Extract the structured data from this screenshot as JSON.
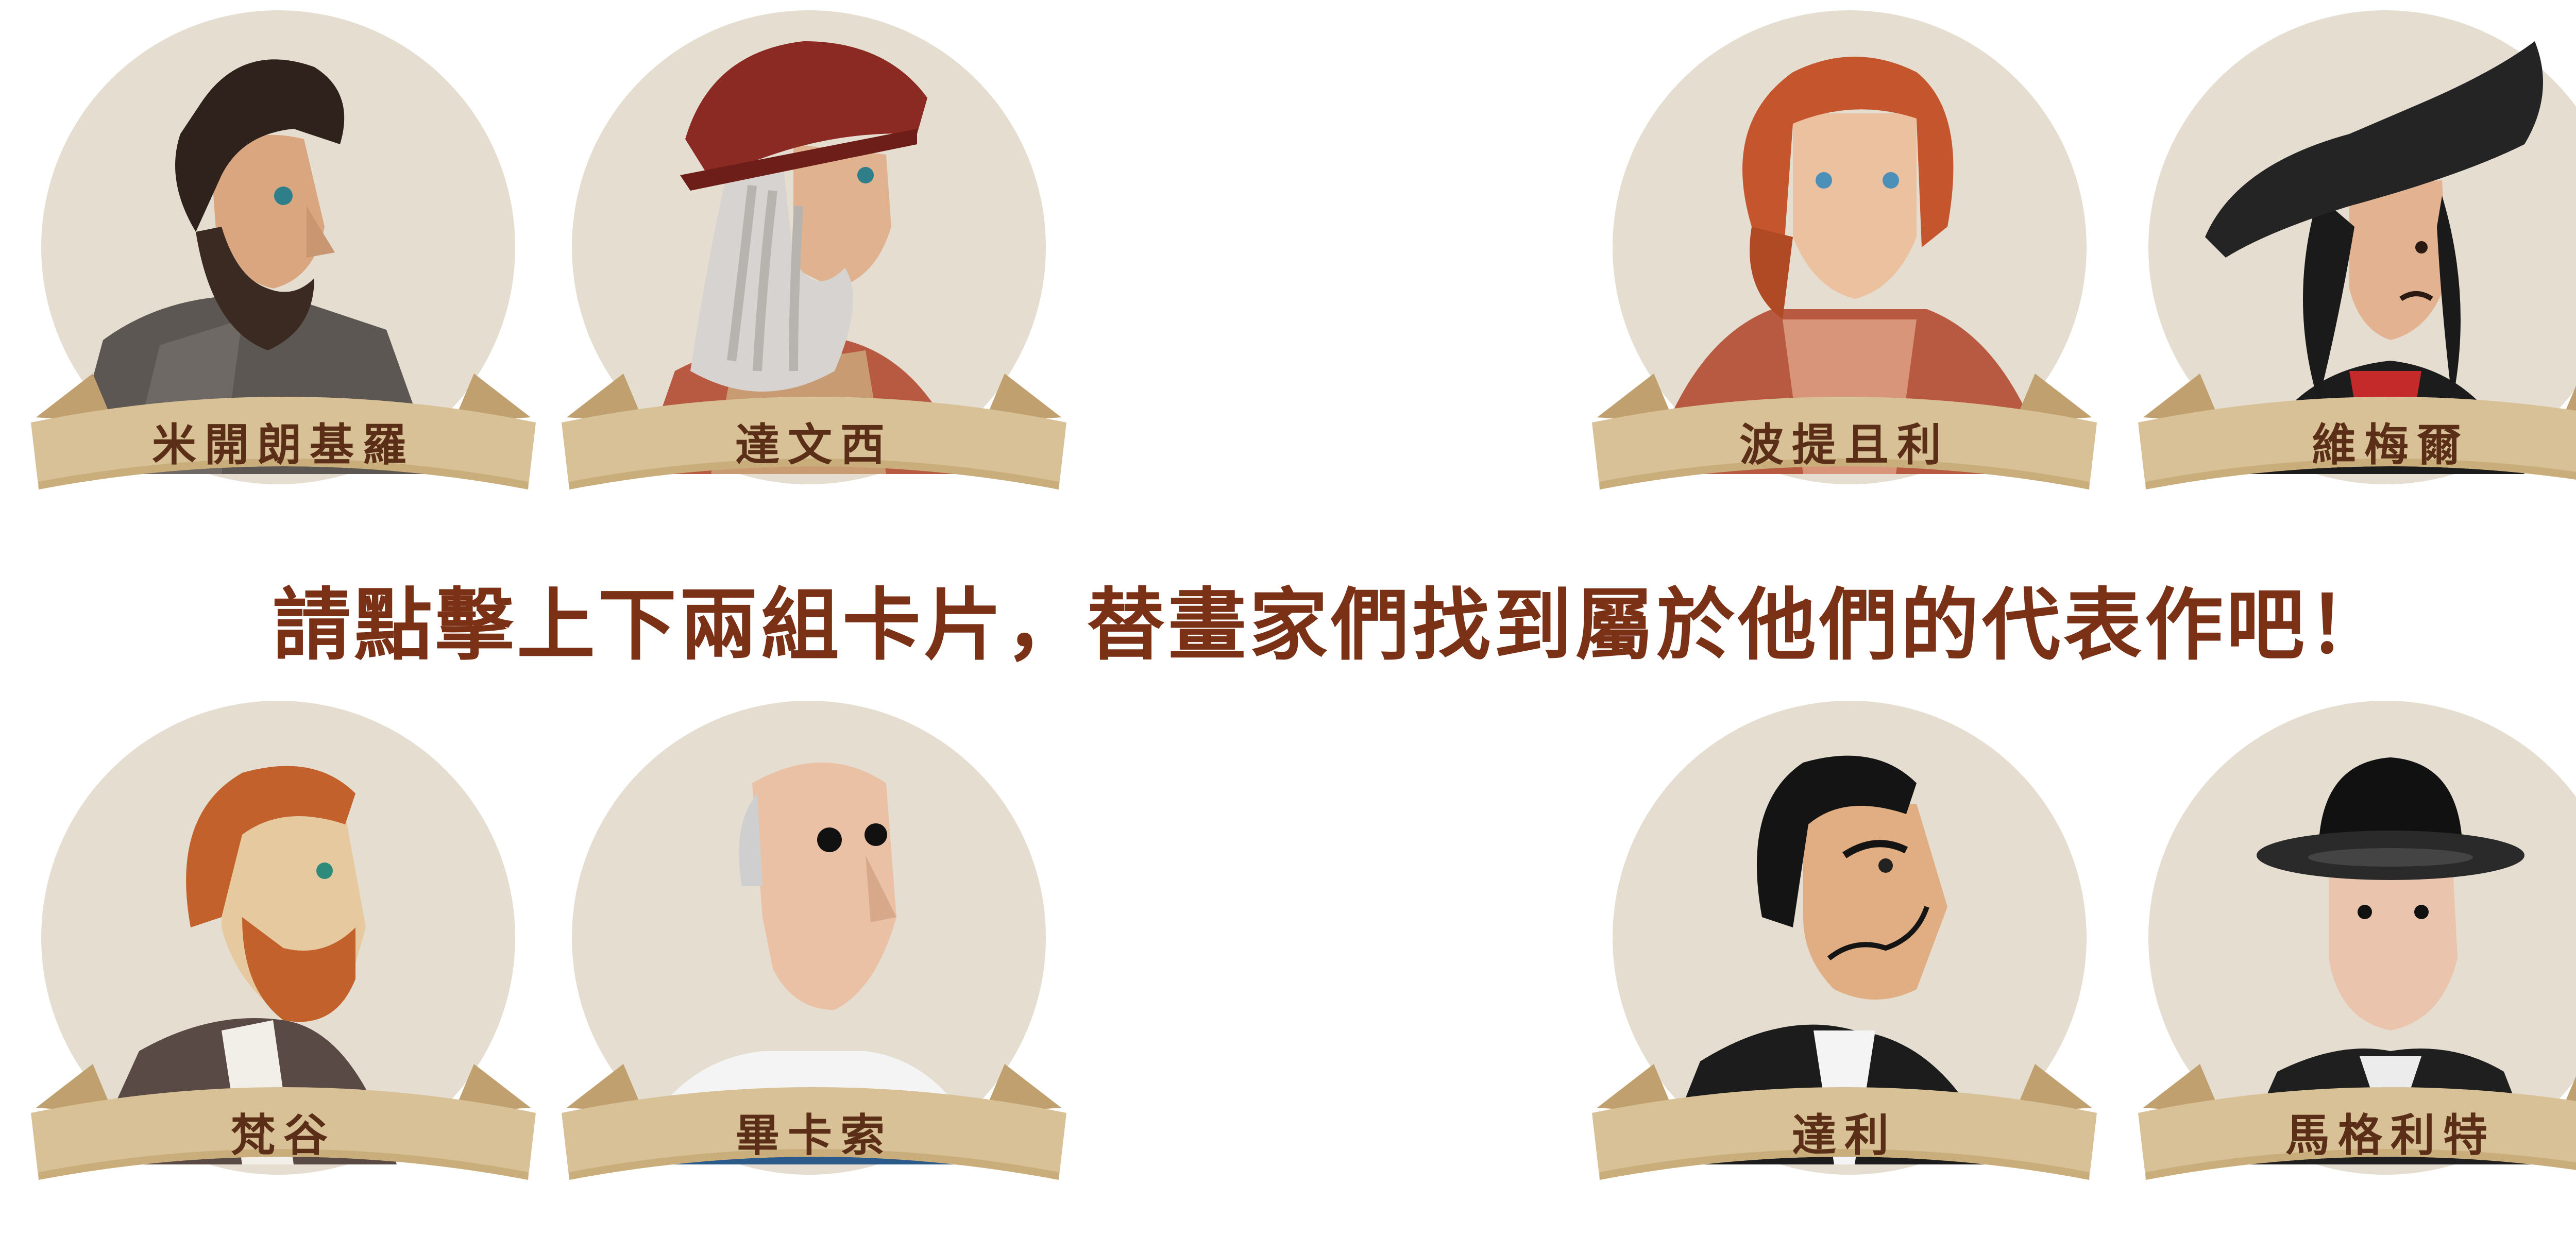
{
  "instruction": "請點擊上下兩組卡片，替畫家們找到屬於他們的代表作吧！",
  "colors": {
    "circle_bg": "#e4ddd0",
    "banner_front": "#d8c196",
    "banner_back": "#bfa06e",
    "name_text": "#5a2e17",
    "instruction_text": "#7a3116"
  },
  "painters": [
    {
      "name": "米開朗基羅",
      "icon": "michelangelo-portrait-icon"
    },
    {
      "name": "達文西",
      "icon": "da-vinci-portrait-icon"
    },
    {
      "name": "波提且利",
      "icon": "botticelli-portrait-icon"
    },
    {
      "name": "維梅爾",
      "icon": "vermeer-portrait-icon"
    },
    {
      "name": "梵谷",
      "icon": "van-gogh-portrait-icon"
    },
    {
      "name": "畢卡索",
      "icon": "picasso-portrait-icon"
    },
    {
      "name": "達利",
      "icon": "dali-portrait-icon"
    },
    {
      "name": "馬格利特",
      "icon": "magritte-portrait-icon"
    }
  ]
}
